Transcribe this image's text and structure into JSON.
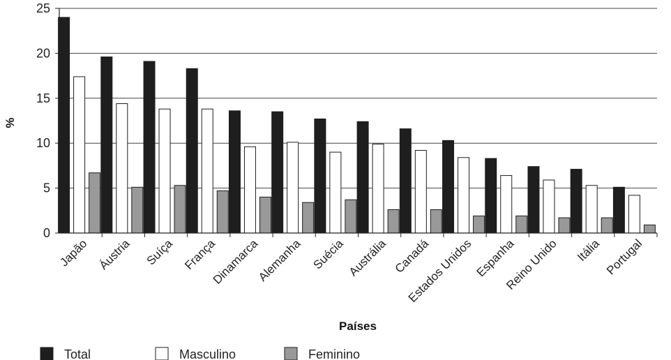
{
  "chart_data": {
    "type": "bar",
    "xlabel": "Países",
    "ylabel": "%",
    "ylim": [
      0,
      25
    ],
    "yticks": [
      "0",
      "5",
      "10",
      "15",
      "20",
      "25"
    ],
    "grid": "horizontal",
    "legend_position": "bottom-left",
    "categories": [
      "Japão",
      "Áustria",
      "Suíça",
      "França",
      "Dinamarca",
      "Alemanha",
      "Suécia",
      "Austrália",
      "Canadá",
      "Estados Unidos",
      "Espanha",
      "Reino Unido",
      "Itália",
      "Portugal"
    ],
    "series": [
      {
        "name": "Total",
        "color": "#1e1e1e",
        "values": [
          24.0,
          19.6,
          19.1,
          18.3,
          13.6,
          13.5,
          12.7,
          12.4,
          11.6,
          10.3,
          8.3,
          7.4,
          7.1,
          5.1
        ]
      },
      {
        "name": "Masculino",
        "color": "#ffffff",
        "values": [
          17.4,
          14.4,
          13.8,
          13.8,
          9.6,
          10.1,
          9.0,
          9.9,
          9.2,
          8.4,
          6.4,
          5.9,
          5.3,
          4.2
        ]
      },
      {
        "name": "Feminino",
        "color": "#999999",
        "values": [
          6.7,
          5.1,
          5.3,
          4.7,
          4.0,
          3.4,
          3.7,
          2.6,
          2.6,
          1.9,
          1.9,
          1.7,
          1.7,
          0.9
        ]
      }
    ]
  }
}
